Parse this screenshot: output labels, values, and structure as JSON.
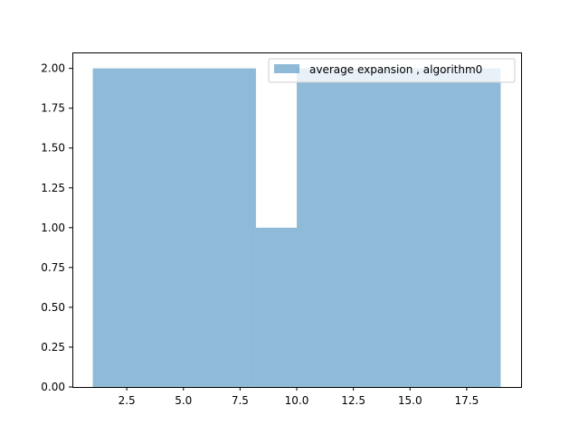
{
  "chart_data": {
    "type": "histogram",
    "title": "",
    "xlabel": "",
    "ylabel": "",
    "xlim": [
      0.1,
      19.9
    ],
    "ylim": [
      0,
      2.1
    ],
    "grid": false,
    "legend_placement": "upper right",
    "series": [
      {
        "name": "average expansion , algorithm0",
        "color": "#1f77b4",
        "alpha": 0.5,
        "bins": [
          {
            "x0": 1.0,
            "x1": 8.2,
            "value": 2.0
          },
          {
            "x0": 8.2,
            "x1": 10.0,
            "value": 1.0
          },
          {
            "x0": 10.0,
            "x1": 19.0,
            "value": 2.0
          }
        ]
      }
    ],
    "xticks": [
      {
        "value": 2.5,
        "label": "2.5"
      },
      {
        "value": 5.0,
        "label": "5.0"
      },
      {
        "value": 7.5,
        "label": "7.5"
      },
      {
        "value": 10.0,
        "label": "10.0"
      },
      {
        "value": 12.5,
        "label": "12.5"
      },
      {
        "value": 15.0,
        "label": "15.0"
      },
      {
        "value": 17.5,
        "label": "17.5"
      }
    ],
    "yticks": [
      {
        "value": 0.0,
        "label": "0.00"
      },
      {
        "value": 0.25,
        "label": "0.25"
      },
      {
        "value": 0.5,
        "label": "0.50"
      },
      {
        "value": 0.75,
        "label": "0.75"
      },
      {
        "value": 1.0,
        "label": "1.00"
      },
      {
        "value": 1.25,
        "label": "1.25"
      },
      {
        "value": 1.5,
        "label": "1.50"
      },
      {
        "value": 1.75,
        "label": "1.75"
      },
      {
        "value": 2.0,
        "label": "2.00"
      }
    ]
  }
}
